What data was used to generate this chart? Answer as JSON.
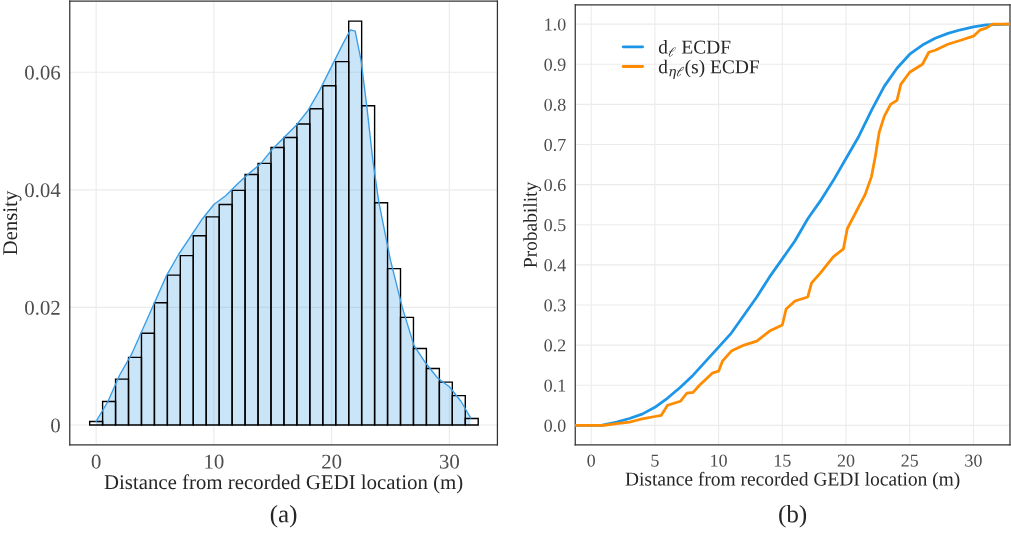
{
  "chart_data": [
    {
      "type": "histogram",
      "ylabel": "Density",
      "xlabel": "Distance from recorded GEDI location (m)",
      "bins": [
        -0.55,
        0.55,
        1.65,
        2.75,
        3.85,
        4.95,
        6.05,
        7.15,
        8.25,
        9.35,
        10.45,
        11.55,
        12.65,
        13.75,
        14.85,
        15.95,
        17.05,
        18.15,
        19.25,
        20.35,
        21.45,
        22.55,
        23.65,
        24.75,
        25.85,
        26.95,
        28.05,
        29.15,
        30.25,
        31.35,
        32.45
      ],
      "values": [
        0.0006,
        0.004,
        0.0078,
        0.0115,
        0.0156,
        0.0208,
        0.0255,
        0.0288,
        0.0322,
        0.0354,
        0.0375,
        0.0399,
        0.0426,
        0.0445,
        0.0472,
        0.0489,
        0.0512,
        0.0538,
        0.0577,
        0.0618,
        0.0687,
        0.0543,
        0.0378,
        0.0266,
        0.0183,
        0.013,
        0.0096,
        0.0073,
        0.005,
        0.0011
      ],
      "color": "#000000",
      "series": [
        {
          "type": "area",
          "color": "#3a9ee6",
          "x": [
            0,
            1,
            2,
            3,
            4,
            5,
            6,
            7,
            8,
            9,
            10,
            11,
            12,
            13,
            14,
            15,
            16,
            17,
            18,
            19,
            20,
            21,
            21.6,
            22,
            22.5,
            23,
            23.5,
            24,
            25,
            26,
            27,
            28,
            29,
            30,
            31,
            31.8
          ],
          "values": [
            0.0006,
            0.004,
            0.0085,
            0.012,
            0.0165,
            0.021,
            0.0255,
            0.029,
            0.032,
            0.035,
            0.0375,
            0.039,
            0.041,
            0.0428,
            0.0445,
            0.047,
            0.049,
            0.051,
            0.0535,
            0.057,
            0.061,
            0.065,
            0.0672,
            0.067,
            0.062,
            0.054,
            0.045,
            0.038,
            0.028,
            0.02,
            0.0135,
            0.0105,
            0.008,
            0.0065,
            0.004,
            0.0012
          ]
        }
      ],
      "xlim": [
        -2.24,
        34.08
      ],
      "xticks": [
        0,
        10,
        20,
        30
      ],
      "ylim": [
        -0.0034,
        0.0721
      ],
      "yticks": [
        0,
        {
          "value": 0.02,
          "label": "0.02"
        },
        {
          "value": 0.04,
          "label": "0.04"
        },
        {
          "value": 0.06,
          "label": "0.06"
        }
      ],
      "grid": true,
      "annotations": [
        "(a)"
      ]
    },
    {
      "type": "line",
      "ylabel": "Probability",
      "xlabel": "Distance from recorded GEDI location (m)",
      "series": [
        {
          "name": "d$_{ℓ}$ ECDF",
          "color": "#1e96e8",
          "x": [
            -1.25,
            0.8,
            2,
            3,
            4,
            5,
            6,
            7,
            8,
            9,
            10,
            11,
            12,
            13,
            14,
            15,
            16,
            17,
            18,
            19,
            20,
            21,
            22,
            23,
            24,
            25,
            26,
            27,
            28,
            29,
            30,
            31,
            32.87
          ],
          "values": [
            0,
            0,
            0.008,
            0.017,
            0.028,
            0.045,
            0.068,
            0.095,
            0.125,
            0.16,
            0.195,
            0.23,
            0.275,
            0.32,
            0.37,
            0.415,
            0.46,
            0.515,
            0.56,
            0.61,
            0.665,
            0.72,
            0.785,
            0.845,
            0.89,
            0.925,
            0.948,
            0.965,
            0.977,
            0.986,
            0.993,
            0.998,
            1.0
          ]
        },
        {
          "name": "d$_{ηℓ}$(s) ECDF",
          "color": "#ff8c00",
          "x": [
            -1.25,
            1,
            2,
            3,
            3.5,
            4,
            5,
            5.5,
            6,
            7,
            7.5,
            8,
            8.5,
            9,
            9.5,
            10,
            10.3,
            11,
            12,
            13,
            14,
            15,
            15.3,
            16,
            17,
            17.3,
            18,
            19,
            19.8,
            20.1,
            21,
            21.5,
            22,
            22.3,
            22.6,
            23,
            23.5,
            24,
            24.3,
            25,
            26,
            26.5,
            27,
            28,
            29,
            30,
            30.5,
            31,
            31.5,
            32.87
          ],
          "values": [
            0,
            0,
            0.004,
            0.008,
            0.012,
            0.016,
            0.022,
            0.025,
            0.05,
            0.06,
            0.08,
            0.082,
            0.1,
            0.115,
            0.13,
            0.135,
            0.16,
            0.185,
            0.2,
            0.21,
            0.235,
            0.25,
            0.29,
            0.31,
            0.32,
            0.355,
            0.38,
            0.42,
            0.44,
            0.49,
            0.545,
            0.575,
            0.62,
            0.67,
            0.73,
            0.77,
            0.8,
            0.81,
            0.85,
            0.88,
            0.9,
            0.93,
            0.935,
            0.95,
            0.96,
            0.97,
            0.985,
            0.99,
            1.0,
            1.0
          ]
        }
      ],
      "xlim": [
        -1.25,
        32.87
      ],
      "xticks": [
        0,
        5,
        10,
        15,
        20,
        25,
        30
      ],
      "ylim": [
        -0.049,
        1.048
      ],
      "yticks": [
        {
          "value": 0,
          "label": "0.0"
        },
        0.1,
        0.2,
        0.3,
        0.4,
        0.5,
        0.6,
        0.7,
        0.8,
        0.9,
        {
          "value": 1,
          "label": "1.0"
        }
      ],
      "grid": true,
      "legend": "top left",
      "annotations": [
        "(b)"
      ]
    }
  ]
}
